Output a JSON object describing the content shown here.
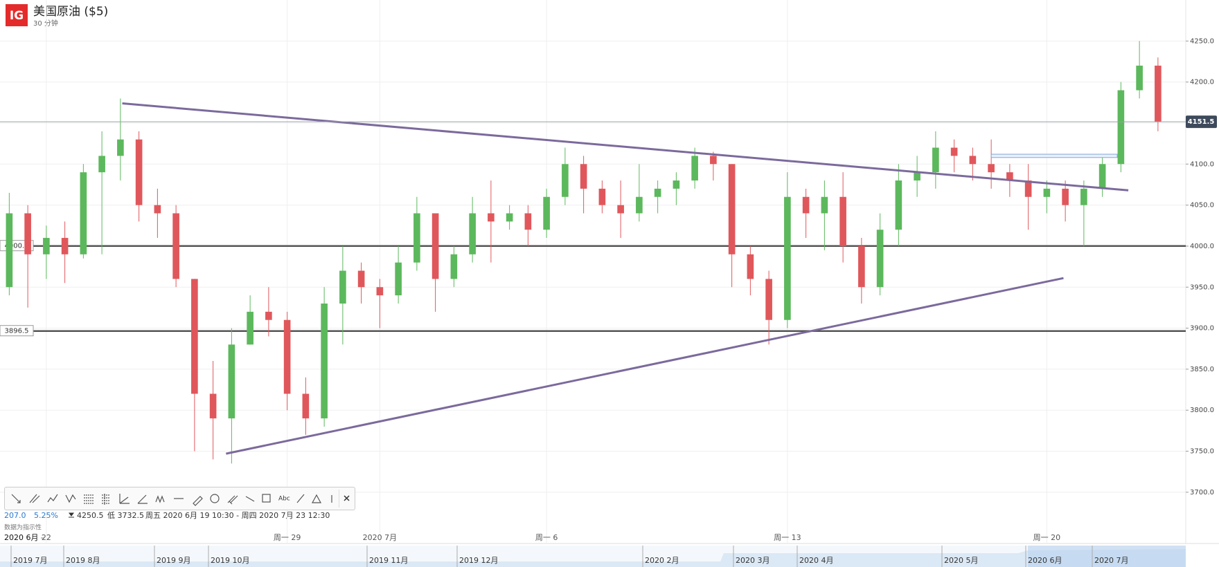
{
  "header": {
    "logo": "IG",
    "title": "美国原油 ($5)",
    "subtitle": "30 分钟"
  },
  "chart_data": {
    "type": "candlestick",
    "categories": [
      null,
      null,
      "22",
      null,
      null,
      null,
      null,
      null,
      null,
      null,
      null,
      null,
      null,
      null,
      null,
      "周一 29",
      null,
      null,
      null,
      null,
      "2020 7月",
      null,
      null,
      null,
      null,
      null,
      null,
      null,
      null,
      "周一 6",
      null,
      null,
      null,
      null,
      null,
      null,
      null,
      null,
      null,
      null,
      null,
      null,
      "周一 13",
      null,
      null,
      null,
      null,
      null,
      null,
      null,
      null,
      null,
      null,
      null,
      null,
      null,
      "周一 20",
      null,
      null,
      null,
      null,
      null,
      null,
      null
    ],
    "open": [
      3950,
      4040,
      3990,
      4010,
      3990,
      4090,
      4110,
      4130,
      4050,
      4040,
      3960,
      3820,
      3790,
      3880,
      3920,
      3910,
      3820,
      3790,
      3930,
      3970,
      3950,
      3940,
      3980,
      4040,
      3960,
      3990,
      4040,
      4030,
      4040,
      4020,
      4060,
      4100,
      4070,
      4050,
      4040,
      4060,
      4070,
      4080,
      4110,
      4100,
      3990,
      3960,
      3910,
      4060,
      4040,
      4060,
      4000,
      3950,
      4020,
      4080,
      4090,
      4120,
      4110,
      4100,
      4090,
      4080,
      4060,
      4070,
      4050,
      4070,
      4100,
      4190,
      4220,
      null
    ],
    "high": [
      4065,
      4050,
      4025,
      4030,
      4100,
      4140,
      4180,
      4140,
      4070,
      4050,
      3960,
      3860,
      3900,
      3940,
      3950,
      3920,
      3840,
      3950,
      4000,
      3980,
      3960,
      4000,
      4060,
      4040,
      4000,
      4060,
      4080,
      4050,
      4050,
      4070,
      4120,
      4110,
      4080,
      4080,
      4100,
      4080,
      4090,
      4120,
      4115,
      4100,
      4000,
      3970,
      4090,
      4070,
      4080,
      4090,
      4010,
      4040,
      4100,
      4110,
      4140,
      4130,
      4120,
      4130,
      4100,
      4100,
      4080,
      4080,
      4080,
      4110,
      4200,
      4250,
      4230,
      null
    ],
    "low": [
      3940,
      3925,
      3960,
      3955,
      3985,
      3990,
      4080,
      4030,
      4010,
      3950,
      3750,
      3740,
      3735,
      3880,
      3890,
      3800,
      3770,
      3780,
      3880,
      3930,
      3900,
      3930,
      3970,
      3920,
      3950,
      3980,
      3980,
      4020,
      4000,
      4010,
      4050,
      4040,
      4040,
      4010,
      4030,
      4040,
      4050,
      4070,
      4080,
      3950,
      3940,
      3880,
      3900,
      4010,
      3995,
      3980,
      3930,
      3940,
      4000,
      4060,
      4070,
      4090,
      4080,
      4070,
      4060,
      4020,
      4040,
      4030,
      4000,
      4060,
      4090,
      4180,
      4140,
      null
    ],
    "close": [
      4040,
      3990,
      4010,
      3990,
      4090,
      4110,
      4130,
      4050,
      4040,
      3960,
      3820,
      3790,
      3880,
      3920,
      3910,
      3820,
      3790,
      3930,
      3970,
      3950,
      3940,
      3980,
      4040,
      3960,
      3990,
      4040,
      4030,
      4040,
      4020,
      4060,
      4100,
      4070,
      4050,
      4040,
      4060,
      4070,
      4080,
      4110,
      4100,
      3990,
      3960,
      3910,
      4060,
      4040,
      4060,
      4000,
      3950,
      4020,
      4080,
      4090,
      4120,
      4110,
      4100,
      4090,
      4080,
      4060,
      4070,
      4050,
      4070,
      4100,
      4190,
      4220,
      4151.5,
      null
    ],
    "up_color": "#5cb85c",
    "down_color": "#e0575b",
    "ylim": [
      3651,
      4300
    ],
    "yticks": [
      {
        "value": 3700,
        "label": "3700.0"
      },
      {
        "value": 3750,
        "label": "3750.0"
      },
      {
        "value": 3800,
        "label": "3800.0"
      },
      {
        "value": 3850,
        "label": "3850.0"
      },
      {
        "value": 3900,
        "label": "3900.0"
      },
      {
        "value": 3950,
        "label": "3950.0"
      },
      {
        "value": 4000,
        "label": "4000.0"
      },
      {
        "value": 4050,
        "label": "4050.0"
      },
      {
        "value": 4100,
        "label": "4100.0"
      },
      {
        "value": 4150,
        "label": "4150.0"
      },
      {
        "value": 4200,
        "label": "4200.0"
      },
      {
        "value": 4250,
        "label": "4250.0"
      }
    ],
    "grid": true,
    "last_price": 4151.5,
    "levels": [
      4000.2,
      3896.5
    ],
    "trendlines": [
      {
        "x": [
          6.1,
          60.4
        ],
        "y": [
          4174,
          4068
        ]
      },
      {
        "x": [
          11.7,
          56.9
        ],
        "y": [
          3747,
          3961
        ]
      }
    ],
    "box": {
      "x": [
        53,
        59.8
      ],
      "y": [
        4108,
        4112
      ]
    },
    "period_label": "2020 6月"
  },
  "toolbar": {
    "text_tool": "Abc"
  },
  "info": {
    "change": "207.0",
    "change_pct": "5.25%",
    "high": "4250.5",
    "low": "低 3732.5",
    "range": "周五 2020 6月 19 10:30 - 周四 2020 7月 23 12:30",
    "note": "数据为指示性"
  },
  "navigator": {
    "labels": [
      "2019 7月",
      "2019 8月",
      "2019 9月",
      "2019 10月",
      "2019 11月",
      "2019 12月",
      "2020 2月",
      "2020 3月",
      "2020 4月",
      "2020 5月",
      "2020 6月",
      "2020 7月"
    ]
  }
}
